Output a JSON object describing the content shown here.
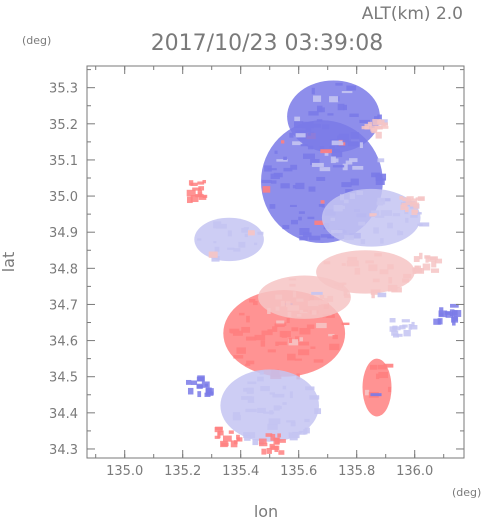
{
  "chart_data": {
    "type": "heatmap",
    "title": "2017/10/23 03:39:08",
    "altitude_label": "ALT(km) 2.0",
    "xlabel": "lon",
    "ylabel": "lat",
    "xunit": "(deg)",
    "yunit": "(deg)",
    "xlim": [
      134.87,
      136.17
    ],
    "ylim": [
      34.275,
      35.36
    ],
    "xticks": [
      135.0,
      135.2,
      135.4,
      135.6,
      135.8,
      136.0
    ],
    "yticks": [
      34.3,
      34.4,
      34.5,
      34.6,
      34.7,
      34.8,
      34.9,
      35.0,
      35.1,
      35.2,
      35.3
    ],
    "xtick_labels": [
      "135.0",
      "135.2",
      "135.4",
      "135.6",
      "135.8",
      "136.0"
    ],
    "ytick_labels": [
      "34.3",
      "34.4",
      "34.5",
      "34.6",
      "34.7",
      "34.8",
      "34.9",
      "35.0",
      "35.1",
      "35.2",
      "35.3"
    ],
    "grid": false,
    "colors": {
      "approaching_strong": "#7a7ae8",
      "approaching_weak": "#c4c4f2",
      "receding_weak": "#f6c4c4",
      "receding_strong": "#ff8080",
      "axis": "#7a7a7a"
    },
    "regions": [
      {
        "name": "north-strong-blue",
        "lon": 135.68,
        "lat": 35.04,
        "rx": 0.21,
        "ry": 0.17,
        "level": -2
      },
      {
        "name": "north-upper-blue",
        "lon": 135.72,
        "lat": 35.22,
        "rx": 0.16,
        "ry": 0.1,
        "level": -2
      },
      {
        "name": "north-light-blue",
        "lon": 135.85,
        "lat": 34.94,
        "rx": 0.17,
        "ry": 0.08,
        "level": -1
      },
      {
        "name": "west-light-blue",
        "lon": 135.36,
        "lat": 34.88,
        "rx": 0.12,
        "ry": 0.06,
        "level": -1
      },
      {
        "name": "central-light-red",
        "lon": 135.83,
        "lat": 34.79,
        "rx": 0.17,
        "ry": 0.06,
        "level": 1
      },
      {
        "name": "south-strong-red",
        "lon": 135.55,
        "lat": 34.62,
        "rx": 0.21,
        "ry": 0.12,
        "level": 2
      },
      {
        "name": "south-light-red",
        "lon": 135.62,
        "lat": 34.72,
        "rx": 0.16,
        "ry": 0.06,
        "level": 1
      },
      {
        "name": "southeast-red",
        "lon": 135.87,
        "lat": 34.47,
        "rx": 0.05,
        "ry": 0.08,
        "level": 2
      },
      {
        "name": "south-mixed",
        "lon": 135.5,
        "lat": 34.42,
        "rx": 0.17,
        "ry": 0.1,
        "level": -1
      }
    ]
  }
}
